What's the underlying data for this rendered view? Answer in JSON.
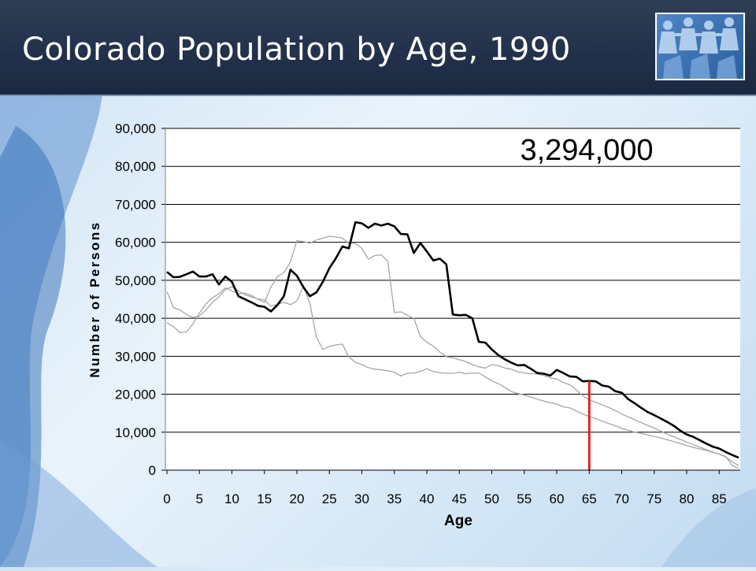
{
  "slide": {
    "title": "Colorado Population by Age, 1990"
  },
  "logo": {
    "icon": "people-chain-icon"
  },
  "chart_data": {
    "type": "line",
    "title": "",
    "xlabel": "Age",
    "ylabel": "Number of Persons",
    "annotation": "3,294,000",
    "xlim": [
      0,
      88
    ],
    "ylim": [
      0,
      90000
    ],
    "x_ticks": [
      0,
      5,
      10,
      15,
      20,
      25,
      30,
      35,
      40,
      45,
      50,
      55,
      60,
      65,
      70,
      75,
      80,
      85
    ],
    "y_ticks": [
      0,
      10000,
      20000,
      30000,
      40000,
      50000,
      60000,
      70000,
      80000,
      90000
    ],
    "y_tick_labels": [
      "0",
      "10,000",
      "20,000",
      "30,000",
      "40,000",
      "50,000",
      "60,000",
      "70,000",
      "80,000",
      "90,000"
    ],
    "grid": "horizontal",
    "marker_line": {
      "x": 65,
      "y0": 0,
      "y1": 23500,
      "color": "#e02020"
    },
    "colors": {
      "main": "#000000",
      "background_series": "#a6a6a6",
      "marker": "#e02020",
      "plot_bg": "#ffffff"
    },
    "series": [
      {
        "x": [
          0,
          1,
          2,
          3,
          4,
          5,
          6,
          7,
          8,
          9,
          10,
          11,
          12,
          13,
          14,
          15,
          16,
          17,
          18,
          19,
          20,
          21,
          22,
          23,
          24,
          25,
          26,
          27,
          28,
          29,
          30,
          31,
          32,
          33,
          34,
          35,
          36,
          37,
          38,
          39,
          40,
          41,
          42,
          43,
          44,
          45,
          46,
          47,
          48,
          49,
          50,
          51,
          52,
          53,
          54,
          55,
          56,
          57,
          58,
          59,
          60,
          61,
          62,
          63,
          64,
          65,
          66,
          67,
          68,
          69,
          70,
          71,
          72,
          73,
          74,
          75,
          76,
          77,
          78,
          79,
          80,
          81,
          82,
          83,
          84,
          85,
          86,
          87,
          88
        ],
        "values": [
          52200,
          50800,
          50900,
          51600,
          52300,
          51000,
          51000,
          51600,
          48900,
          51000,
          49600,
          45800,
          45000,
          44200,
          43300,
          43000,
          41800,
          43500,
          45800,
          52800,
          51200,
          48200,
          45800,
          46800,
          49600,
          53200,
          55800,
          58900,
          58400,
          65300,
          65000,
          63800,
          64900,
          64400,
          64900,
          64200,
          62200,
          62100,
          57200,
          59800,
          57600,
          55200,
          55700,
          54200,
          41000,
          40800,
          40900,
          40000,
          33800,
          33600,
          31800,
          30300,
          29200,
          28300,
          27600,
          27700,
          26700,
          25600,
          25400,
          24900,
          26400,
          25600,
          24700,
          24600,
          23400,
          23500,
          23400,
          22300,
          22000,
          20800,
          20400,
          18700,
          17600,
          16400,
          15300,
          14500,
          13600,
          12700,
          11700,
          10400,
          9400,
          8800,
          7900,
          7000,
          6200,
          5700,
          4800,
          4000,
          3300
        ],
        "role": "main"
      },
      {
        "x": [
          0,
          1,
          2,
          3,
          4,
          5,
          6,
          7,
          8,
          9,
          10,
          11,
          12,
          13,
          14,
          15,
          16,
          17,
          18,
          19,
          20,
          21,
          22,
          23,
          24,
          25,
          26,
          27,
          28,
          29,
          30,
          31,
          32,
          33,
          34,
          35,
          36,
          37,
          38,
          39,
          40,
          41,
          42,
          43,
          44,
          45,
          46,
          47,
          48,
          49,
          50,
          51,
          52,
          53,
          54,
          55,
          56,
          57,
          58,
          59,
          60,
          61,
          62,
          63,
          64,
          65,
          66,
          67,
          68,
          69,
          70,
          71,
          72,
          73,
          74,
          75,
          76,
          77,
          78,
          79,
          80,
          81,
          82,
          83,
          84,
          85,
          86,
          87,
          88
        ],
        "values": [
          47000,
          42800,
          42200,
          41000,
          40200,
          40600,
          42200,
          44200,
          45600,
          47600,
          48300,
          47200,
          46200,
          45600,
          45100,
          44800,
          43200,
          43700,
          44200,
          43600,
          44600,
          48400,
          44000,
          35000,
          31800,
          32600,
          33000,
          33200,
          29800,
          28400,
          27800,
          27000,
          26600,
          26400,
          26200,
          25800,
          24800,
          25500,
          25600,
          26000,
          26700,
          26000,
          25700,
          25500,
          25500,
          25800,
          25400,
          25600,
          25600,
          24600,
          23500,
          22800,
          21800,
          20700,
          20200,
          19800,
          19200,
          18700,
          18200,
          17800,
          17400,
          16700,
          16400,
          15600,
          14800,
          14100,
          13600,
          12900,
          12300,
          11700,
          11000,
          10500,
          10000,
          9700,
          9300,
          8900,
          8500,
          8000,
          7500,
          7000,
          6500,
          6000,
          5600,
          5200,
          4700,
          4300,
          3600,
          1200,
          500
        ]
      },
      {
        "x": [
          0,
          1,
          2,
          3,
          4,
          5,
          6,
          7,
          8,
          9,
          10,
          11,
          12,
          13,
          14,
          15,
          16,
          17,
          18,
          19,
          20,
          21,
          22,
          23,
          24,
          25,
          26,
          27,
          28,
          29,
          30,
          31,
          32,
          33,
          34,
          35,
          36,
          37,
          38,
          39,
          40,
          41,
          42,
          43,
          44,
          45,
          46,
          47,
          48,
          49,
          50,
          51,
          52,
          53,
          54,
          55,
          56,
          57,
          58,
          59,
          60,
          61,
          62,
          63,
          64,
          65,
          66,
          67,
          68,
          69,
          70,
          71,
          72,
          73,
          74,
          75,
          76,
          77,
          78,
          79,
          80,
          81,
          82,
          83,
          84,
          85,
          86,
          87,
          88
        ],
        "values": [
          38800,
          37800,
          36200,
          36400,
          38500,
          41400,
          43800,
          45400,
          46500,
          48000,
          47200,
          46500,
          46600,
          46000,
          45000,
          44200,
          48200,
          51000,
          52000,
          54800,
          60500,
          60200,
          59800,
          60600,
          61100,
          61600,
          61400,
          61100,
          59700,
          59700,
          58400,
          55600,
          56500,
          56700,
          55000,
          41500,
          41700,
          40800,
          40000,
          35200,
          33700,
          32700,
          31100,
          29900,
          29600,
          29100,
          28600,
          27800,
          27200,
          26900,
          27800,
          27500,
          26900,
          26600,
          25900,
          25600,
          25400,
          25300,
          24900,
          24300,
          24000,
          23100,
          22500,
          21100,
          19600,
          18500,
          17900,
          17200,
          16500,
          15700,
          14800,
          14000,
          13300,
          12500,
          11800,
          11100,
          10300,
          9500,
          8800,
          8100,
          7400,
          6700,
          6100,
          5400,
          4800,
          4200,
          3500,
          2200,
          1200
        ]
      }
    ]
  }
}
